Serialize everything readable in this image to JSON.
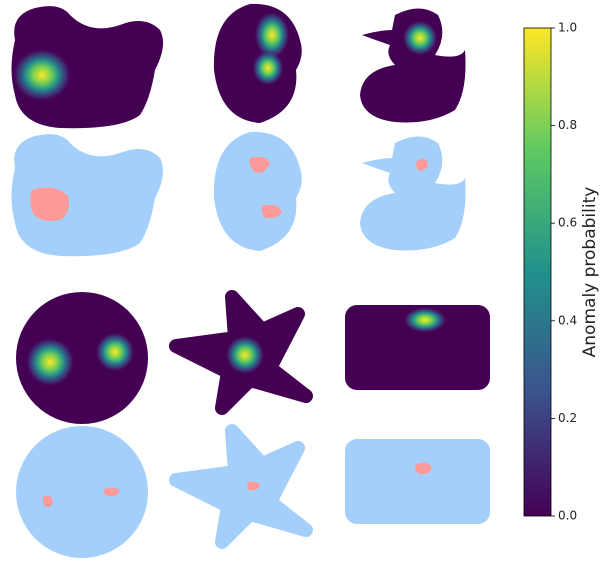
{
  "chart_data": {
    "type": "heatmap",
    "colorbar": {
      "label": "Anomaly probability",
      "lim": [
        0,
        1
      ],
      "ticks": [
        {
          "value": 0,
          "label": "0.0"
        },
        {
          "value": 0.2,
          "label": "0.2"
        },
        {
          "value": 0.4,
          "label": "0.4"
        },
        {
          "value": 0.6,
          "label": "0.6"
        },
        {
          "value": 0.8,
          "label": "0.8"
        },
        {
          "value": 1,
          "label": "1.0"
        }
      ],
      "colors": [
        "#440154",
        "#3b528b",
        "#21918c",
        "#5ec962",
        "#fde725"
      ]
    }
  }
}
